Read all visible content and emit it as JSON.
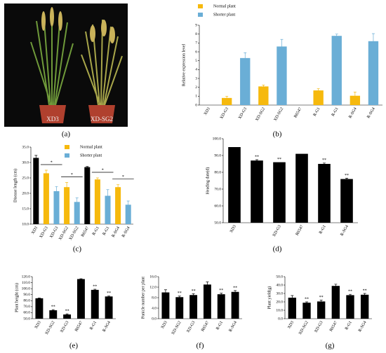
{
  "panel_labels": [
    "(a)",
    "(b)",
    "(c)",
    "(d)",
    "(e)",
    "(f)",
    "(g)"
  ],
  "photo": {
    "labels": [
      "XD3",
      "XD-SG2"
    ]
  },
  "chart_data": [
    {
      "type": "bar",
      "ylabel": "Relative expression level",
      "categories": [
        "XD3",
        "XD-G3",
        "XD-G3",
        "XD-SG2",
        "XD-SG2",
        "R6547",
        "R-G1",
        "R-G1",
        "R-SG4",
        "R-SG4"
      ],
      "series": [
        {
          "name": "Normal plant",
          "color": "#f6b90d",
          "values": [
            null,
            0.8,
            null,
            2.1,
            null,
            null,
            1.65,
            null,
            1.05,
            null
          ],
          "errors": [
            null,
            0.2,
            null,
            0.15,
            null,
            null,
            0.2,
            null,
            0.4,
            null
          ]
        },
        {
          "name": "Shorter plant",
          "color": "#6aaed6",
          "values": [
            null,
            null,
            5.3,
            null,
            6.6,
            null,
            null,
            7.8,
            null,
            7.2
          ],
          "errors": [
            null,
            null,
            0.6,
            null,
            0.8,
            null,
            null,
            0.2,
            null,
            0.85
          ]
        }
      ],
      "ylim": [
        0,
        9
      ],
      "yticks": [
        0,
        1,
        2,
        3,
        4,
        5,
        6,
        7,
        8,
        9
      ]
    },
    {
      "type": "bar",
      "ylabel": "Disease length (cm)",
      "categories": [
        "XD3",
        "XD-G3",
        "XD-G3",
        "XD-SG2",
        "XD-SG2",
        "R6547",
        "R-G1",
        "R-G1",
        "R-SG4",
        "R-SG4"
      ],
      "series": [
        {
          "color": "#000000",
          "values": [
            31.5,
            null,
            null,
            null,
            null,
            28.5,
            null,
            null,
            null,
            null
          ],
          "errors": [
            0.8,
            null,
            null,
            null,
            null,
            0.2,
            null,
            null,
            null,
            null
          ]
        },
        {
          "name": "Normal plant",
          "color": "#f6b90d",
          "values": [
            null,
            26.5,
            null,
            22,
            null,
            null,
            24.5,
            null,
            22,
            null
          ],
          "errors": [
            null,
            1,
            null,
            1.5,
            null,
            null,
            0.5,
            null,
            0.8,
            null
          ]
        },
        {
          "name": "Shorter plant",
          "color": "#6aaed6",
          "values": [
            null,
            null,
            20.7,
            null,
            17.2,
            null,
            null,
            19.2,
            null,
            16.3
          ],
          "errors": [
            null,
            null,
            1.5,
            null,
            1.3,
            null,
            null,
            2,
            null,
            1.2
          ]
        }
      ],
      "brackets": [
        {
          "from": 1,
          "to": 2,
          "label": "*"
        },
        {
          "from": 3,
          "to": 4,
          "label": "*"
        },
        {
          "from": 6,
          "to": 7,
          "label": "*"
        },
        {
          "from": 8,
          "to": 9,
          "label": "*"
        }
      ],
      "ylim": [
        10,
        35
      ],
      "yticks": [
        {
          "value": 10,
          "label": "10.0"
        },
        {
          "value": 15,
          "label": "15.0"
        },
        {
          "value": 20,
          "label": "20.0"
        },
        {
          "value": 25,
          "label": "25.0"
        },
        {
          "value": 30,
          "label": "30.0"
        },
        {
          "value": 35,
          "label": "35.0"
        }
      ]
    },
    {
      "type": "bar",
      "ylabel": "Heading date(d)",
      "categories": [
        "XD3",
        null,
        "XD-G3",
        "R6547",
        "R-G1",
        "R-SG4"
      ],
      "series": [
        {
          "color": "#000000",
          "values": [
            95,
            87,
            86,
            91,
            85,
            76
          ],
          "errors": [
            null,
            0.5,
            null,
            null,
            0.5,
            0.5
          ],
          "stars": [
            null,
            "**",
            "**",
            null,
            "**",
            "**"
          ]
        }
      ],
      "ylim": [
        50,
        100
      ],
      "yticks": [
        {
          "value": 50,
          "label": "50.0"
        },
        {
          "value": 60,
          "label": "60.0"
        },
        {
          "value": 70,
          "label": "70.0"
        },
        {
          "value": 80,
          "label": "80.0"
        },
        {
          "value": 90,
          "label": "90.0"
        },
        {
          "value": 100,
          "label": "100.0"
        }
      ]
    },
    {
      "type": "bar",
      "ylabel": "Plant height (cm)",
      "categories": [
        "XD3",
        "XD-SG2",
        "XD-G3",
        "R6547",
        "R-G1",
        "R-SG4"
      ],
      "series": [
        {
          "color": "#000000",
          "values": [
            84,
            64,
            57,
            116,
            98,
            87
          ],
          "errors": [
            0.5,
            1,
            1,
            0.5,
            1,
            1
          ],
          "stars": [
            null,
            "**",
            "**",
            null,
            "**",
            "**"
          ]
        }
      ],
      "ylim": [
        50,
        120
      ],
      "yticks": [
        {
          "value": 50,
          "label": "50.0"
        },
        {
          "value": 60,
          "label": "60.0"
        },
        {
          "value": 70,
          "label": "70.0"
        },
        {
          "value": 80,
          "label": "80.0"
        },
        {
          "value": 90,
          "label": "90.0"
        },
        {
          "value": 100,
          "label": "100.0"
        },
        {
          "value": 110,
          "label": "110.0"
        },
        {
          "value": 120,
          "label": "120.0"
        }
      ]
    },
    {
      "type": "bar",
      "ylabel": "Panicle number per plant",
      "categories": [
        "XD3",
        "XD-SG2",
        "XD-G3",
        "R6547",
        "R-G1",
        "R-SG4"
      ],
      "series": [
        {
          "color": "#000000",
          "values": [
            10,
            8.2,
            9,
            13,
            9.3,
            10.2
          ],
          "errors": [
            1,
            0.4,
            0.5,
            1,
            0.4,
            0.5
          ],
          "stars": [
            null,
            "**",
            "**",
            null,
            "**",
            "**"
          ]
        }
      ],
      "ylim": [
        0,
        16
      ],
      "yticks": [
        {
          "value": 0,
          "label": "0.0"
        },
        {
          "value": 4,
          "label": "4.0"
        },
        {
          "value": 8,
          "label": "8.0"
        },
        {
          "value": 12,
          "label": "12.0"
        },
        {
          "value": 16,
          "label": "16.0"
        }
      ]
    },
    {
      "type": "bar",
      "ylabel": "Plant yield(g)",
      "categories": [
        "XD3",
        "XD-SG2",
        "XD-G3",
        "R6547",
        "R-G1",
        "R-SG4"
      ],
      "series": [
        {
          "color": "#000000",
          "values": [
            25,
            19,
            20.5,
            39,
            28,
            28.5
          ],
          "errors": [
            2.5,
            1,
            1.5,
            2,
            1,
            1.5
          ],
          "stars": [
            null,
            "**",
            "**",
            null,
            "**",
            "**"
          ]
        }
      ],
      "ylim": [
        0,
        50
      ],
      "yticks": [
        {
          "value": 0,
          "label": "0.0"
        },
        {
          "value": 10,
          "label": "10.0"
        },
        {
          "value": 20,
          "label": "20.0"
        },
        {
          "value": 30,
          "label": "30.0"
        },
        {
          "value": 40,
          "label": "40.0"
        },
        {
          "value": 50,
          "label": "50.0"
        }
      ]
    }
  ]
}
